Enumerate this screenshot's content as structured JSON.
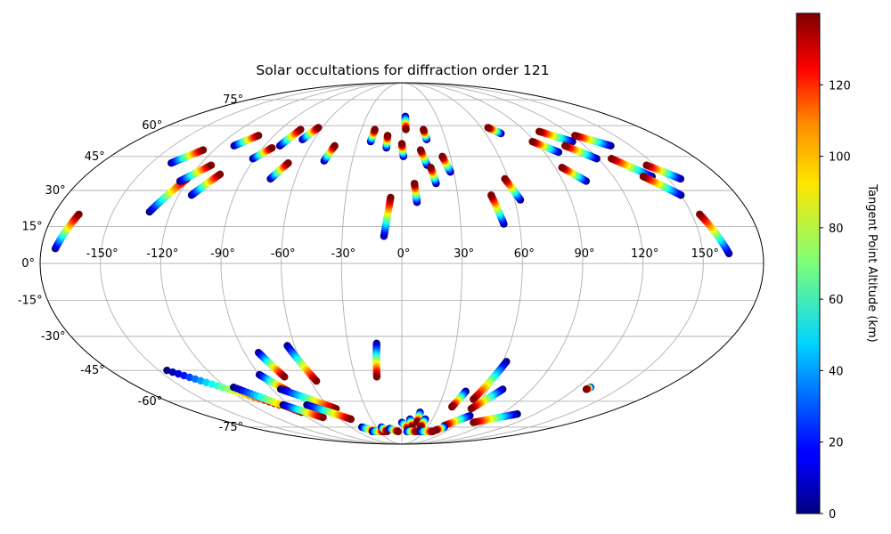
{
  "chart_data": {
    "type": "scatter",
    "projection": "mollweide",
    "title": "Solar occultations for diffraction order 121",
    "grid": true,
    "lon_ticks": [
      -150,
      -120,
      -90,
      -60,
      -30,
      0,
      30,
      60,
      90,
      120,
      150
    ],
    "lon_tick_labels": [
      "-150°",
      "-120°",
      "-90°",
      "-60°",
      "-30°",
      "0°",
      "30°",
      "60°",
      "90°",
      "120°",
      "150°"
    ],
    "lat_ticks": [
      75,
      60,
      45,
      30,
      15,
      0,
      -15,
      -30,
      -45,
      -60,
      -75
    ],
    "lat_tick_labels": [
      "75°",
      "60°",
      "45°",
      "30°",
      "15°",
      "0°",
      "-15°",
      "-30°",
      "-45°",
      "-60°",
      "-75°"
    ],
    "colorbar": {
      "label": "Tangent Point Altitude (km)",
      "colormap": "jet",
      "range": [
        0,
        140
      ],
      "ticks": [
        0,
        20,
        40,
        60,
        80,
        100,
        120
      ],
      "tick_labels": [
        "0",
        "20",
        "40",
        "60",
        "80",
        "100",
        "120"
      ]
    },
    "occultation_tracks": [
      {
        "lon_start": -173,
        "lat_start": 6,
        "lon_end": -167,
        "lat_end": 20
      },
      {
        "lon_start": -138,
        "lat_start": 42,
        "lon_end": -127,
        "lat_end": 48
      },
      {
        "lon_start": -131,
        "lat_start": 21,
        "lon_end": -121,
        "lat_end": 35
      },
      {
        "lon_start": -124,
        "lat_start": 34,
        "lon_end": -113,
        "lat_end": 41
      },
      {
        "lon_start": -113,
        "lat_start": 28,
        "lon_end": -104,
        "lat_end": 37
      },
      {
        "lon_start": -110,
        "lat_start": 50,
        "lon_end": -101,
        "lat_end": 55
      },
      {
        "lon_start": -91,
        "lat_start": 44,
        "lon_end": -84,
        "lat_end": 49
      },
      {
        "lon_start": -80,
        "lat_start": 50,
        "lon_end": -75,
        "lat_end": 58
      },
      {
        "lon_start": -74,
        "lat_start": 35,
        "lon_end": -68,
        "lat_end": 42
      },
      {
        "lon_start": -68,
        "lat_start": 53,
        "lon_end": -63,
        "lat_end": 59
      },
      {
        "lon_start": -47,
        "lat_start": 43,
        "lon_end": -44,
        "lat_end": 50
      },
      {
        "lon_start": -21,
        "lat_start": 52,
        "lon_end": -20,
        "lat_end": 58
      },
      {
        "lon_start": -10,
        "lat_start": 49,
        "lon_end": -10,
        "lat_end": 55
      },
      {
        "lon_start": -9,
        "lat_start": 11,
        "lon_end": -6,
        "lat_end": 27
      },
      {
        "lon_start": 1,
        "lat_start": 45,
        "lon_end": 0,
        "lat_end": 51
      },
      {
        "lon_start": 3,
        "lat_start": 65,
        "lon_end": 3,
        "lat_end": 58
      },
      {
        "lon_start": 8,
        "lat_start": 25,
        "lon_end": 7,
        "lat_end": 33
      },
      {
        "lon_start": 15,
        "lat_start": 41,
        "lon_end": 12,
        "lat_end": 48
      },
      {
        "lon_start": 17,
        "lat_start": 53,
        "lon_end": 16,
        "lat_end": 58
      },
      {
        "lon_start": 19,
        "lat_start": 33,
        "lon_end": 17,
        "lat_end": 40
      },
      {
        "lon_start": 28,
        "lat_start": 38,
        "lon_end": 25,
        "lat_end": 45
      },
      {
        "lon_start": 52,
        "lat_start": 16,
        "lon_end": 48,
        "lat_end": 28
      },
      {
        "lon_start": 63,
        "lat_start": 26,
        "lon_end": 58,
        "lat_end": 35
      },
      {
        "lon_start": 71,
        "lat_start": 56,
        "lon_end": 65,
        "lat_end": 59
      },
      {
        "lon_start": 99,
        "lat_start": 47,
        "lon_end": 88,
        "lat_end": 52
      },
      {
        "lon_start": 103,
        "lat_start": 34,
        "lon_end": 94,
        "lat_end": 40
      },
      {
        "lon_start": 115,
        "lat_start": 52,
        "lon_end": 100,
        "lat_end": 57
      },
      {
        "lon_start": 119,
        "lat_start": 44,
        "lon_end": 107,
        "lat_end": 50
      },
      {
        "lon_start": 137,
        "lat_start": 50,
        "lon_end": 122,
        "lat_end": 55
      },
      {
        "lon_start": 142,
        "lat_start": 36,
        "lon_end": 128,
        "lat_end": 44
      },
      {
        "lon_start": 150,
        "lat_start": 28,
        "lon_end": 137,
        "lat_end": 36
      },
      {
        "lon_start": 157,
        "lat_start": 35,
        "lon_end": 145,
        "lat_end": 41
      },
      {
        "lon_start": 163,
        "lat_start": 4,
        "lon_end": 154,
        "lat_end": 20
      },
      {
        "lon_start": -14,
        "lat_start": -33,
        "lon_end": -16,
        "lat_end": -48
      },
      {
        "lon_start": -82,
        "lat_start": -37,
        "lon_end": -75,
        "lat_end": -48
      },
      {
        "lon_start": -64,
        "lat_start": -34,
        "lon_end": -56,
        "lat_end": -50
      },
      {
        "lon_start": -90,
        "lat_start": -47,
        "lon_end": -80,
        "lat_end": -55
      },
      {
        "lon_start": -145,
        "lat_start": -45,
        "lon_end": -98,
        "lat_end": -62
      },
      {
        "lon_start": -115,
        "lat_start": -53,
        "lon_end": -88,
        "lat_end": -66
      },
      {
        "lon_start": -95,
        "lat_start": -62,
        "lon_end": -75,
        "lat_end": -69
      },
      {
        "lon_start": -84,
        "lat_start": -54,
        "lon_end": -55,
        "lat_end": -64
      },
      {
        "lon_start": -76,
        "lat_start": -62,
        "lon_end": -50,
        "lat_end": -70
      },
      {
        "lon_start": -47,
        "lat_start": -75,
        "lon_end": -36,
        "lat_end": -78
      },
      {
        "lon_start": -40,
        "lat_start": -78,
        "lon_end": -24,
        "lat_end": -78
      },
      {
        "lon_start": -24,
        "lat_start": -75,
        "lon_end": -20,
        "lat_end": -78
      },
      {
        "lon_start": -15,
        "lat_start": -76,
        "lon_end": -5,
        "lat_end": -78
      },
      {
        "lon_start": 0,
        "lat_start": -72,
        "lon_end": 8,
        "lat_end": -76
      },
      {
        "lon_start": 8,
        "lat_start": -70,
        "lon_end": 12,
        "lat_end": -75
      },
      {
        "lon_start": 16,
        "lat_start": -66,
        "lon_end": 16,
        "lat_end": -72
      },
      {
        "lon_start": 23,
        "lat_start": -70,
        "lon_end": 22,
        "lat_end": -75
      },
      {
        "lon_start": 7,
        "lat_start": -78,
        "lon_end": 20,
        "lat_end": -78
      },
      {
        "lon_start": 25,
        "lat_start": -78,
        "lon_end": 42,
        "lat_end": -78
      },
      {
        "lon_start": 45,
        "lat_start": -55,
        "lon_end": 41,
        "lat_end": -63
      },
      {
        "lon_start": 62,
        "lat_start": -41,
        "lon_end": 54,
        "lat_end": -59
      },
      {
        "lon_start": 70,
        "lat_start": -54,
        "lon_end": 58,
        "lat_end": -64
      },
      {
        "lon_start": 63,
        "lat_start": -68,
        "lon_end": 48,
        "lat_end": -74
      },
      {
        "lon_start": 50,
        "lat_start": -75,
        "lon_end": 44,
        "lat_end": -77
      },
      {
        "lon_start": 104,
        "lat_start": -67,
        "lon_end": 75,
        "lat_end": -72
      },
      {
        "lon_start": 129,
        "lat_start": -53,
        "lon_end": 128,
        "lat_end": -54
      }
    ]
  }
}
